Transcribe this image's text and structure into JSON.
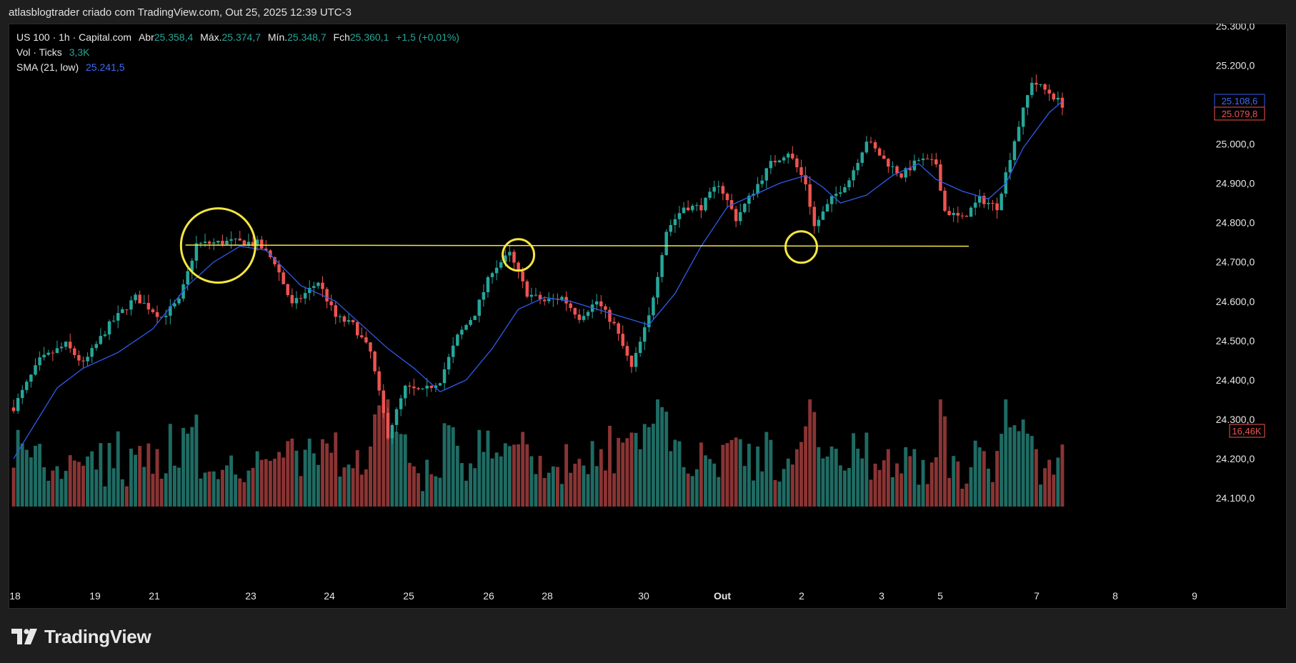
{
  "header": {
    "text": "atlasblogtrader criado com TradingView.com, Out 25, 2025 12:39 UTC-3"
  },
  "legend": {
    "symbol": "US 100 · 1h · Capital.com",
    "open_label": "Abr",
    "open": "25.358,4",
    "high_label": "Máx.",
    "high": "25.374,7",
    "low_label": "Mín.",
    "low": "25.348,7",
    "close_label": "Fch",
    "close": "25.360,1",
    "change": "+1,5 (+0,01%)",
    "vol_label": "Vol · Ticks",
    "vol_value": "3,3K",
    "sma_label": "SMA (21, low)",
    "sma_value": "25.241,5"
  },
  "badges": {
    "sma_price": "25.108,6",
    "last_price": "25.079,8",
    "volume": "16,46K"
  },
  "footer": {
    "brand": "TradingView"
  },
  "colors": {
    "up": "#26a69a",
    "down": "#ef5350",
    "sma": "#2f5bea",
    "annotation": "#f5e642",
    "background": "#000000"
  },
  "chart_data": {
    "type": "candlestick",
    "price_axis": {
      "ticks": [
        24100,
        24200,
        24300,
        24400,
        24500,
        24600,
        24700,
        24800,
        24900,
        25000,
        25100,
        25200,
        25300
      ],
      "tick_labels": [
        "24.100,0",
        "24.200,0",
        "24.300,0",
        "24.400,0",
        "24.500,0",
        "24.600,0",
        "24.700,0",
        "24.800,0",
        "24.900,0",
        "25.000,0",
        "25.100,0",
        "25.200,0",
        "25.300,0"
      ]
    },
    "time_axis": {
      "labels": [
        "18",
        "19",
        "21",
        "23",
        "24",
        "25",
        "26",
        "28",
        "30",
        "Out",
        "2",
        "3",
        "5",
        "7",
        "8",
        "9"
      ]
    },
    "price_path": [
      [
        0,
        24330
      ],
      [
        6,
        24450
      ],
      [
        12,
        24490
      ],
      [
        16,
        24440
      ],
      [
        22,
        24540
      ],
      [
        28,
        24610
      ],
      [
        34,
        24560
      ],
      [
        38,
        24600
      ],
      [
        42,
        24745
      ],
      [
        50,
        24752
      ],
      [
        56,
        24748
      ],
      [
        60,
        24700
      ],
      [
        64,
        24590
      ],
      [
        70,
        24650
      ],
      [
        74,
        24560
      ],
      [
        78,
        24540
      ],
      [
        82,
        24470
      ],
      [
        86,
        24260
      ],
      [
        90,
        24380
      ],
      [
        94,
        24370
      ],
      [
        98,
        24400
      ],
      [
        102,
        24510
      ],
      [
        106,
        24570
      ],
      [
        110,
        24680
      ],
      [
        114,
        24720
      ],
      [
        118,
        24620
      ],
      [
        122,
        24600
      ],
      [
        126,
        24610
      ],
      [
        130,
        24560
      ],
      [
        134,
        24600
      ],
      [
        138,
        24540
      ],
      [
        142,
        24430
      ],
      [
        146,
        24560
      ],
      [
        150,
        24780
      ],
      [
        154,
        24840
      ],
      [
        158,
        24840
      ],
      [
        162,
        24900
      ],
      [
        166,
        24810
      ],
      [
        170,
        24880
      ],
      [
        174,
        24950
      ],
      [
        178,
        24980
      ],
      [
        182,
        24900
      ],
      [
        184,
        24790
      ],
      [
        188,
        24860
      ],
      [
        192,
        24910
      ],
      [
        196,
        25010
      ],
      [
        200,
        24960
      ],
      [
        204,
        24920
      ],
      [
        208,
        24960
      ],
      [
        212,
        24950
      ],
      [
        214,
        24830
      ],
      [
        218,
        24810
      ],
      [
        222,
        24860
      ],
      [
        226,
        24840
      ],
      [
        230,
        25010
      ],
      [
        234,
        25160
      ],
      [
        238,
        25130
      ],
      [
        241,
        25100
      ]
    ],
    "sma_path": [
      [
        0,
        24200
      ],
      [
        10,
        24380
      ],
      [
        16,
        24430
      ],
      [
        24,
        24470
      ],
      [
        32,
        24530
      ],
      [
        40,
        24640
      ],
      [
        46,
        24700
      ],
      [
        52,
        24740
      ],
      [
        58,
        24730
      ],
      [
        66,
        24640
      ],
      [
        74,
        24600
      ],
      [
        80,
        24540
      ],
      [
        86,
        24480
      ],
      [
        92,
        24430
      ],
      [
        98,
        24370
      ],
      [
        104,
        24400
      ],
      [
        110,
        24480
      ],
      [
        116,
        24580
      ],
      [
        122,
        24610
      ],
      [
        128,
        24600
      ],
      [
        134,
        24580
      ],
      [
        140,
        24560
      ],
      [
        146,
        24540
      ],
      [
        152,
        24620
      ],
      [
        158,
        24740
      ],
      [
        164,
        24840
      ],
      [
        170,
        24870
      ],
      [
        176,
        24900
      ],
      [
        182,
        24920
      ],
      [
        186,
        24890
      ],
      [
        190,
        24850
      ],
      [
        196,
        24870
      ],
      [
        202,
        24920
      ],
      [
        208,
        24950
      ],
      [
        212,
        24910
      ],
      [
        218,
        24880
      ],
      [
        224,
        24860
      ],
      [
        228,
        24900
      ],
      [
        232,
        24990
      ],
      [
        238,
        25080
      ],
      [
        241,
        25108.6
      ]
    ],
    "support_line": {
      "price": 24740,
      "from_bar": 40,
      "to_bar": 220
    },
    "circles": [
      {
        "bar": 47,
        "price": 24742
      },
      {
        "bar": 116,
        "price": 24718
      },
      {
        "bar": 181,
        "price": 24738
      }
    ],
    "volume_max": 16460
  }
}
